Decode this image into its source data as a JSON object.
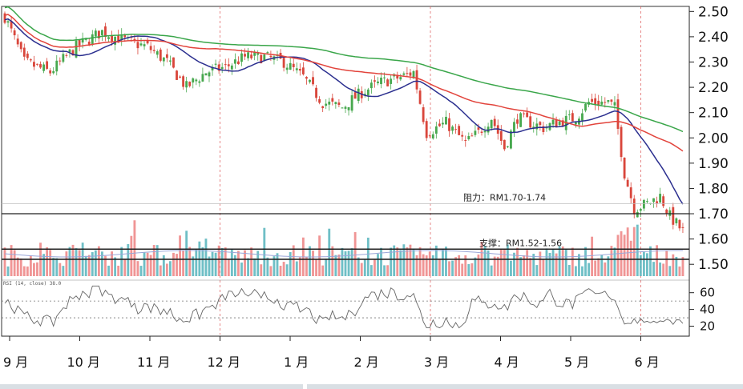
{
  "chart_data": {
    "type": "candlestick",
    "x_months": [
      "9 月",
      "10 月",
      "11 月",
      "12 月",
      "1 月",
      "2 月",
      "3 月",
      "4 月",
      "5 月",
      "6 月"
    ],
    "price_axis": {
      "ticks": [
        "2.50",
        "2.40",
        "2.30",
        "2.20",
        "2.10",
        "2.00",
        "1.90",
        "1.80",
        "1.70",
        "1.60",
        "1.50"
      ],
      "range": [
        1.45,
        2.52
      ]
    },
    "rsi_axis": {
      "ticks": [
        "60",
        "40",
        "20"
      ],
      "range": [
        10,
        75
      ],
      "reference_levels": [
        50,
        30
      ]
    },
    "annotations": [
      {
        "label": "阻力：RM1.70-1.74",
        "kind": "resistance",
        "low": 1.7,
        "high": 1.74
      },
      {
        "label": "支撑：RM1.52-1.56",
        "kind": "support",
        "low": 1.52,
        "high": 1.56
      }
    ],
    "rsi_small_label": "RSI (14, close) 38.0",
    "close_anchors": [
      [
        0,
        2.48
      ],
      [
        6,
        2.3
      ],
      [
        14,
        2.26
      ],
      [
        22,
        2.36
      ],
      [
        30,
        2.42
      ],
      [
        38,
        2.38
      ],
      [
        44,
        2.36
      ],
      [
        50,
        2.3
      ],
      [
        56,
        2.2
      ],
      [
        62,
        2.26
      ],
      [
        68,
        2.28
      ],
      [
        74,
        2.32
      ],
      [
        80,
        2.32
      ],
      [
        86,
        2.3
      ],
      [
        92,
        2.24
      ],
      [
        98,
        2.14
      ],
      [
        104,
        2.12
      ],
      [
        110,
        2.18
      ],
      [
        116,
        2.22
      ],
      [
        122,
        2.24
      ],
      [
        126,
        2.26
      ],
      [
        130,
        2.02
      ],
      [
        136,
        2.06
      ],
      [
        142,
        1.98
      ],
      [
        146,
        2.02
      ],
      [
        150,
        2.08
      ],
      [
        154,
        1.96
      ],
      [
        158,
        2.08
      ],
      [
        162,
        2.06
      ],
      [
        166,
        2.04
      ],
      [
        170,
        2.06
      ],
      [
        176,
        2.08
      ],
      [
        180,
        2.14
      ],
      [
        186,
        2.14
      ],
      [
        188,
        2.12
      ],
      [
        191,
        1.86
      ],
      [
        194,
        1.72
      ],
      [
        198,
        1.74
      ],
      [
        202,
        1.77
      ],
      [
        205,
        1.69
      ],
      [
        209,
        1.63
      ]
    ],
    "total_sessions": 210,
    "moving_averages": [
      {
        "period": 20,
        "color": "#2b2f8f"
      },
      {
        "period": 50,
        "color": "#e2443c"
      },
      {
        "period": 100,
        "color": "#3aa64a"
      }
    ],
    "volume_colors": {
      "up": "#5fb8c0",
      "down": "#ee8a8a"
    },
    "candle_colors": {
      "up": "#47a84e",
      "down": "#d9463b",
      "wick": "#555555"
    },
    "month_divider_color": "#e06a6a"
  }
}
